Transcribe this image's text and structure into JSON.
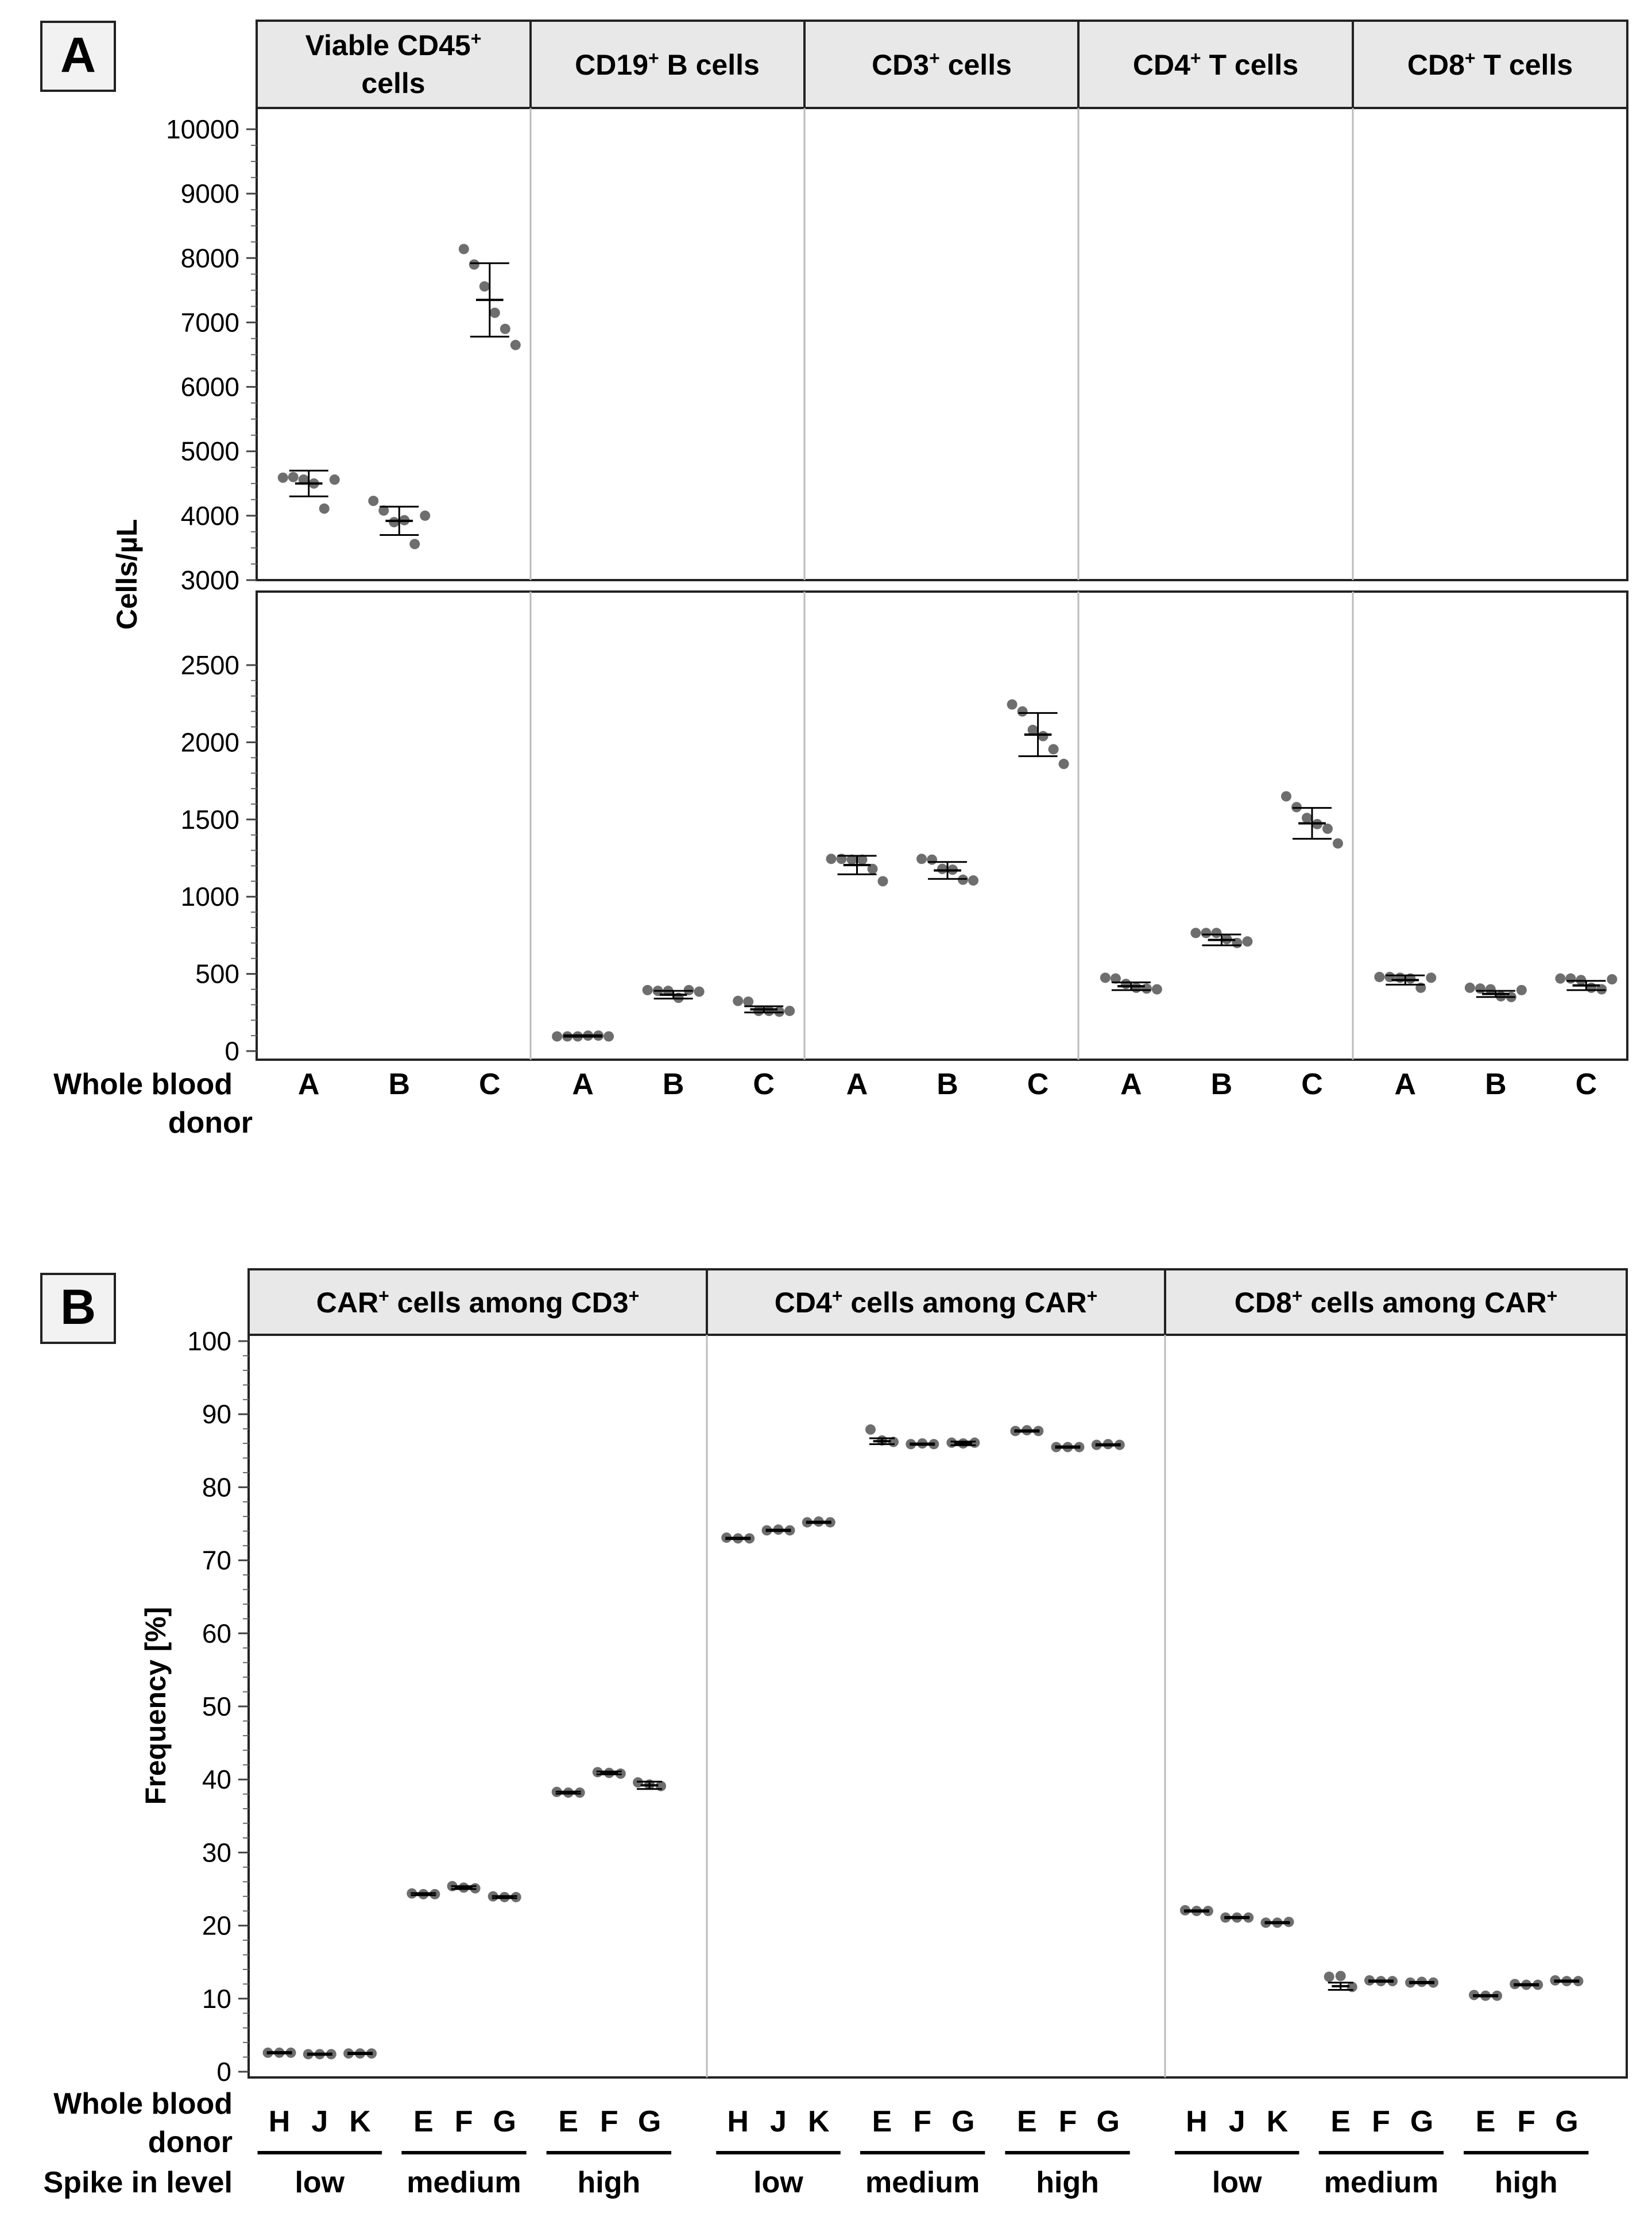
{
  "panel_a": {
    "letter": "A",
    "ylabel": "Cells/µL",
    "xlabel_line1": "Whole blood",
    "xlabel_line2": "donor",
    "facets": [
      {
        "title_line1": "Viable CD45",
        "title_sup": "+",
        "title_line2": "cells"
      },
      {
        "title_main": "CD19",
        "title_sup": "+",
        "title_rest": " B cells"
      },
      {
        "title_main": "CD3",
        "title_sup": "+",
        "title_rest": " cells"
      },
      {
        "title_main": "CD4",
        "title_sup": "+",
        "title_rest": " T cells"
      },
      {
        "title_main": "CD8",
        "title_sup": "+",
        "title_rest": " T cells"
      }
    ]
  },
  "panel_b": {
    "letter": "B",
    "ylabel": "Frequency [%]",
    "xlabel_line1": "Whole blood",
    "xlabel_line2": "donor",
    "spike_label": "Spike in level",
    "facets": [
      {
        "title_main": "CAR",
        "title_sup": "+",
        "title_rest": " cells among CD3",
        "title_sup2": "+"
      },
      {
        "title_main": "CD4",
        "title_sup": "+",
        "title_rest": " cells among CAR",
        "title_sup2": "+"
      },
      {
        "title_main": "CD8",
        "title_sup": "+",
        "title_rest": " cells among CAR",
        "title_sup2": "+"
      }
    ]
  },
  "chart_data": [
    {
      "type": "scatter",
      "panel": "A",
      "ylabel": "Cells/µL",
      "xlabel": "Whole blood donor",
      "broken_y_axis": true,
      "ylim_upper": [
        3000,
        10000
      ],
      "yticks_upper": [
        3000,
        4000,
        5000,
        6000,
        7000,
        8000,
        9000,
        10000
      ],
      "ylim_lower": [
        0,
        3000
      ],
      "yticks_lower": [
        0,
        500,
        1000,
        1500,
        2000,
        2500
      ],
      "categories": [
        "A",
        "B",
        "C"
      ],
      "facets": [
        {
          "name": "Viable CD45+ cells",
          "mean": [
            4500,
            3920,
            7350
          ],
          "sd": [
            200,
            220,
            570
          ],
          "points": [
            [
              4590,
              4600,
              4560,
              4500,
              4110,
              4560
            ],
            [
              4230,
              4080,
              3900,
              3930,
              3560,
              4000
            ],
            [
              8140,
              7900,
              7560,
              7150,
              6900,
              6650
            ]
          ]
        },
        {
          "name": "CD19+ B cells",
          "mean": [
            98,
            365,
            270
          ],
          "sd": [
            5,
            25,
            20
          ],
          "points": [
            [
              95,
              95,
              95,
              100,
              100,
              95
            ],
            [
              395,
              390,
              390,
              345,
              395,
              385
            ],
            [
              325,
              320,
              260,
              260,
              255,
              260
            ]
          ]
        },
        {
          "name": "CD3+ cells",
          "mean": [
            1205,
            1170,
            2050
          ],
          "sd": [
            60,
            55,
            140
          ],
          "points": [
            [
              1245,
              1245,
              1240,
              1240,
              1180,
              1100
            ],
            [
              1245,
              1240,
              1180,
              1175,
              1110,
              1105
            ],
            [
              2245,
              2200,
              2080,
              2040,
              1955,
              1860
            ]
          ]
        },
        {
          "name": "CD4+ T cells",
          "mean": [
            420,
            720,
            1475
          ],
          "sd": [
            25,
            35,
            100
          ],
          "points": [
            [
              475,
              470,
              435,
              410,
              405,
              400
            ],
            [
              765,
              765,
              765,
              725,
              700,
              710
            ],
            [
              1650,
              1580,
              1510,
              1470,
              1440,
              1345
            ]
          ]
        },
        {
          "name": "CD8+ T cells",
          "mean": [
            460,
            370,
            425
          ],
          "sd": [
            30,
            20,
            30
          ],
          "points": [
            [
              480,
              480,
              475,
              470,
              410,
              475
            ],
            [
              410,
              405,
              400,
              355,
              350,
              395
            ],
            [
              470,
              470,
              460,
              410,
              400,
              465
            ]
          ]
        }
      ]
    },
    {
      "type": "scatter",
      "panel": "B",
      "ylabel": "Frequency [%]",
      "xlabel": "Whole blood donor",
      "ylim": [
        0,
        100
      ],
      "yticks": [
        0,
        10,
        20,
        30,
        40,
        50,
        60,
        70,
        80,
        90,
        100
      ],
      "categories": [
        "H",
        "J",
        "K",
        "E",
        "F",
        "G",
        "E",
        "F",
        "G"
      ],
      "spike_in_level": [
        {
          "label": "low",
          "donors": [
            "H",
            "J",
            "K"
          ]
        },
        {
          "label": "medium",
          "donors": [
            "E",
            "F",
            "G"
          ]
        },
        {
          "label": "high",
          "donors": [
            "E",
            "F",
            "G"
          ]
        }
      ],
      "facets": [
        {
          "name": "CAR+ cells among CD3+",
          "mean": [
            2.6,
            2.4,
            2.5,
            24.3,
            25.2,
            23.9,
            38.2,
            40.9,
            39.2
          ],
          "sd": [
            0.1,
            0.1,
            0.1,
            0.15,
            0.2,
            0.15,
            0.15,
            0.2,
            0.5
          ],
          "points": [
            [
              2.6,
              2.6,
              2.6
            ],
            [
              2.4,
              2.4,
              2.4
            ],
            [
              2.5,
              2.5,
              2.5
            ],
            [
              24.4,
              24.3,
              24.3
            ],
            [
              25.4,
              25.2,
              25.1
            ],
            [
              24.0,
              23.9,
              23.9
            ],
            [
              38.3,
              38.2,
              38.2
            ],
            [
              41.0,
              40.9,
              40.8
            ],
            [
              39.6,
              39.3,
              39.1
            ]
          ]
        },
        {
          "name": "CD4+ cells among CAR+",
          "mean": [
            73.0,
            74.1,
            75.2,
            86.3,
            85.9,
            86.0,
            87.7,
            85.5,
            85.8
          ],
          "sd": [
            0.1,
            0.1,
            0.1,
            0.4,
            0.1,
            0.25,
            0.1,
            0.1,
            0.1
          ],
          "points": [
            [
              73.1,
              73.0,
              73.0
            ],
            [
              74.1,
              74.2,
              74.1
            ],
            [
              75.2,
              75.3,
              75.2
            ],
            [
              87.9,
              86.4,
              86.2
            ],
            [
              85.9,
              86.0,
              85.9
            ],
            [
              86.1,
              86.0,
              86.1
            ],
            [
              87.7,
              87.8,
              87.7
            ],
            [
              85.5,
              85.5,
              85.5
            ],
            [
              85.8,
              85.9,
              85.8
            ]
          ]
        },
        {
          "name": "CD8+ cells among CAR+",
          "mean": [
            22.0,
            21.1,
            20.4,
            11.7,
            12.4,
            12.2,
            10.4,
            11.9,
            12.4
          ],
          "sd": [
            0.1,
            0.1,
            0.1,
            0.5,
            0.1,
            0.1,
            0.1,
            0.1,
            0.1
          ],
          "points": [
            [
              22.1,
              22.0,
              22.0
            ],
            [
              21.1,
              21.1,
              21.1
            ],
            [
              20.4,
              20.4,
              20.5
            ],
            [
              13.0,
              13.1,
              11.6
            ],
            [
              12.5,
              12.4,
              12.4
            ],
            [
              12.2,
              12.3,
              12.2
            ],
            [
              10.5,
              10.4,
              10.4
            ],
            [
              12.0,
              11.9,
              11.9
            ],
            [
              12.5,
              12.4,
              12.4
            ]
          ]
        }
      ]
    }
  ]
}
